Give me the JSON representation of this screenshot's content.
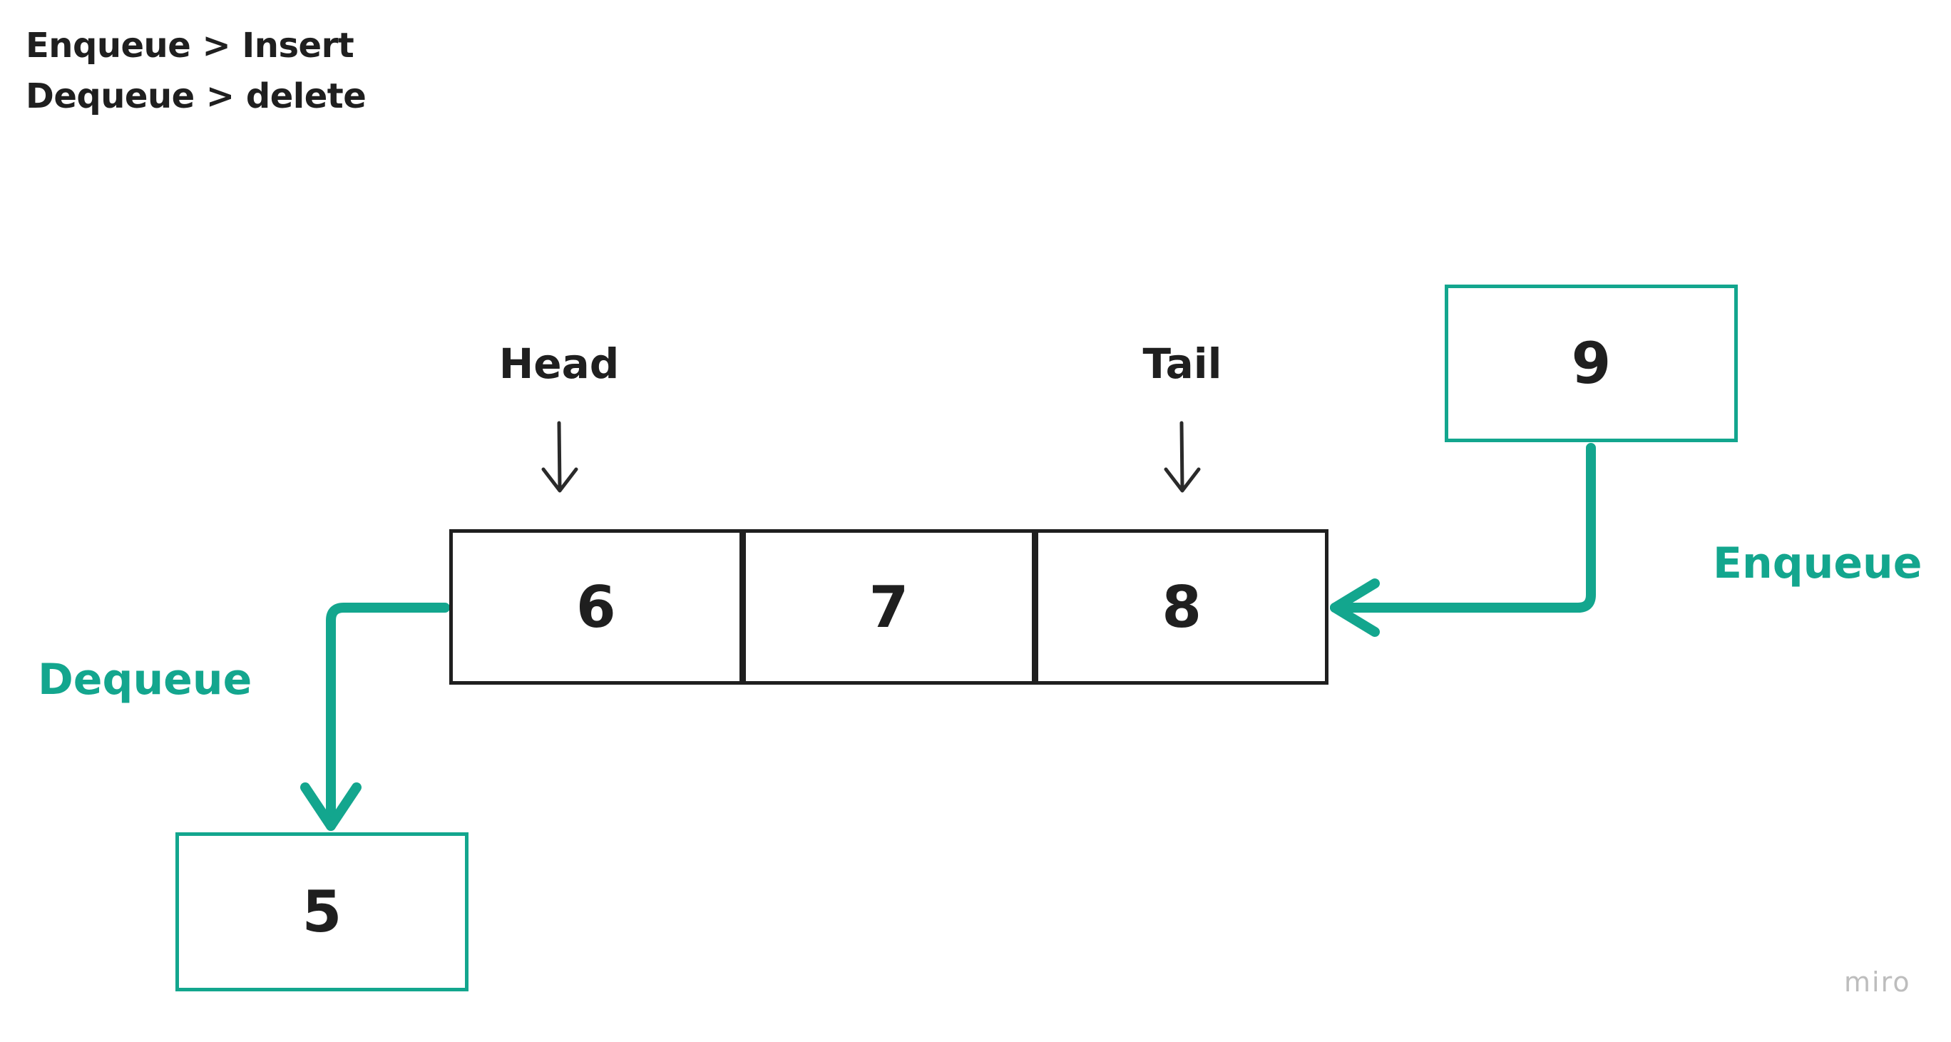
{
  "legend": {
    "line1": "Enqueue > Insert",
    "line2": "Dequeue > delete"
  },
  "pointers": {
    "head": "Head",
    "tail": "Tail"
  },
  "queue": {
    "cells": [
      "6",
      "7",
      "8"
    ]
  },
  "incoming": {
    "value": "9",
    "operation": "Enqueue"
  },
  "outgoing": {
    "value": "5",
    "operation": "Dequeue"
  },
  "watermark": "miro",
  "colors": {
    "accent": "#13a68e",
    "ink": "#1f1f1f"
  },
  "icons": [
    "down-arrow-icon",
    "enqueue-arrow-icon",
    "dequeue-arrow-icon"
  ]
}
